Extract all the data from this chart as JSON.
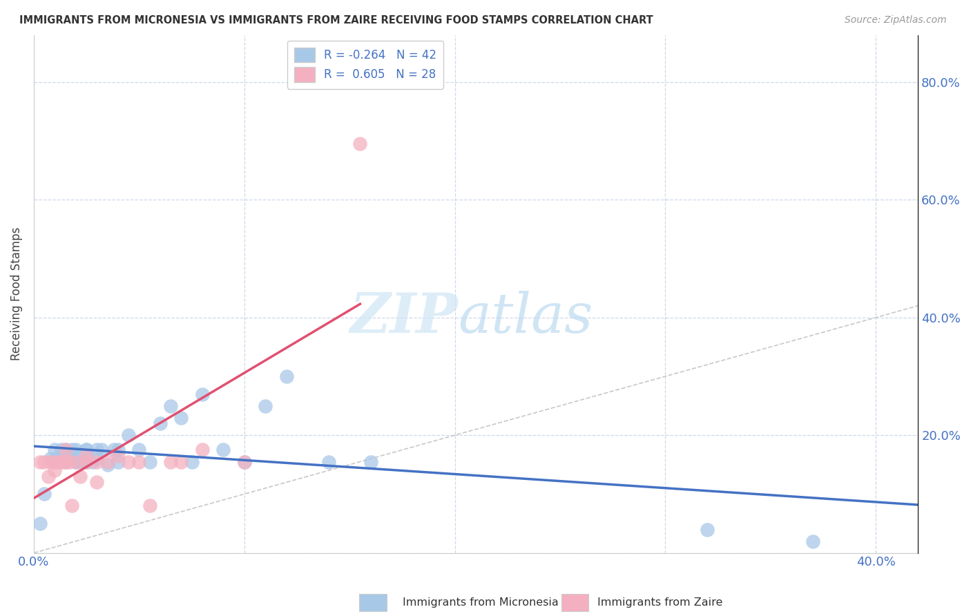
{
  "title": "IMMIGRANTS FROM MICRONESIA VS IMMIGRANTS FROM ZAIRE RECEIVING FOOD STAMPS CORRELATION CHART",
  "source": "Source: ZipAtlas.com",
  "ylabel": "Receiving Food Stamps",
  "xlim": [
    0.0,
    0.42
  ],
  "ylim": [
    0.0,
    0.88
  ],
  "micronesia_color": "#a8c8e8",
  "zaire_color": "#f4b0c0",
  "micronesia_line_color": "#4472c4",
  "zaire_line_color": "#e05070",
  "diagonal_color": "#c8c8c8",
  "R_micronesia": -0.264,
  "N_micronesia": 42,
  "R_zaire": 0.605,
  "N_zaire": 28,
  "micronesia_scatter_x": [
    0.003,
    0.005,
    0.008,
    0.01,
    0.01,
    0.012,
    0.013,
    0.015,
    0.015,
    0.017,
    0.018,
    0.02,
    0.02,
    0.022,
    0.022,
    0.025,
    0.025,
    0.025,
    0.028,
    0.03,
    0.03,
    0.032,
    0.035,
    0.038,
    0.04,
    0.04,
    0.045,
    0.05,
    0.055,
    0.06,
    0.065,
    0.07,
    0.075,
    0.08,
    0.09,
    0.1,
    0.11,
    0.12,
    0.14,
    0.16,
    0.32,
    0.37
  ],
  "micronesia_scatter_y": [
    0.05,
    0.1,
    0.16,
    0.155,
    0.175,
    0.165,
    0.175,
    0.155,
    0.175,
    0.16,
    0.175,
    0.155,
    0.175,
    0.155,
    0.17,
    0.175,
    0.155,
    0.175,
    0.155,
    0.16,
    0.175,
    0.175,
    0.15,
    0.175,
    0.155,
    0.175,
    0.2,
    0.175,
    0.155,
    0.22,
    0.25,
    0.23,
    0.155,
    0.27,
    0.175,
    0.155,
    0.25,
    0.3,
    0.155,
    0.155,
    0.04,
    0.02
  ],
  "zaire_scatter_x": [
    0.003,
    0.005,
    0.007,
    0.008,
    0.01,
    0.01,
    0.012,
    0.013,
    0.015,
    0.015,
    0.017,
    0.018,
    0.02,
    0.022,
    0.025,
    0.025,
    0.03,
    0.03,
    0.035,
    0.04,
    0.045,
    0.05,
    0.055,
    0.065,
    0.07,
    0.08,
    0.1,
    0.155
  ],
  "zaire_scatter_y": [
    0.155,
    0.155,
    0.13,
    0.155,
    0.155,
    0.14,
    0.155,
    0.155,
    0.155,
    0.175,
    0.155,
    0.08,
    0.155,
    0.13,
    0.155,
    0.165,
    0.155,
    0.12,
    0.155,
    0.165,
    0.155,
    0.155,
    0.08,
    0.155,
    0.155,
    0.175,
    0.155,
    0.695
  ]
}
